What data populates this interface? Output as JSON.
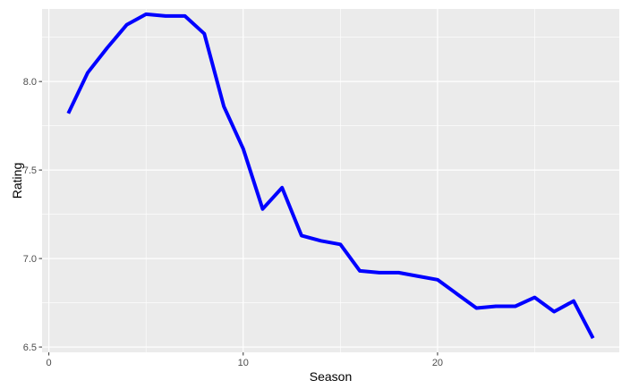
{
  "chart_data": {
    "type": "line",
    "xlabel": "Season",
    "ylabel": "Rating",
    "xlim": [
      -0.35,
      29.35
    ],
    "ylim": [
      6.47,
      8.41
    ],
    "x_ticks": [
      0,
      10,
      20
    ],
    "y_ticks": [
      6.5,
      7.0,
      7.5,
      8.0
    ],
    "x_tick_labels": [
      "0",
      "10",
      "20"
    ],
    "y_tick_labels": [
      "6.5",
      "7.0",
      "7.5",
      "8.0"
    ],
    "grid": true,
    "legend": "none",
    "series": [
      {
        "x": [
          1,
          2,
          3,
          4,
          5,
          6,
          7,
          8,
          9,
          10,
          11,
          12,
          13,
          14,
          15,
          16,
          17,
          18,
          19,
          20,
          21,
          22,
          23,
          24,
          25,
          26,
          27,
          28
        ],
        "values": [
          7.82,
          8.05,
          8.19,
          8.32,
          8.38,
          8.37,
          8.37,
          8.27,
          7.86,
          7.62,
          7.28,
          7.4,
          7.13,
          7.1,
          7.08,
          6.93,
          6.92,
          6.92,
          6.9,
          6.88,
          6.8,
          6.72,
          6.73,
          6.73,
          6.78,
          6.7,
          6.76,
          6.55
        ],
        "color": "#0000FF"
      }
    ]
  }
}
